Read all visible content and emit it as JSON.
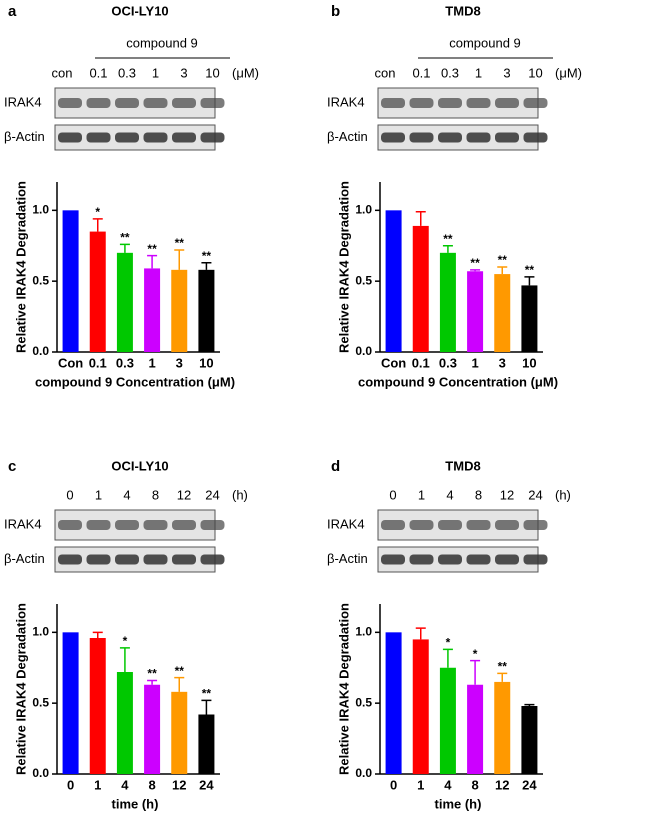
{
  "chart_data": [
    {
      "type": "bar",
      "panel": "a",
      "title": "OCI-LY10",
      "header": "compound 9",
      "lanes": [
        "con",
        "0.1",
        "0.3",
        "1",
        "3",
        "10"
      ],
      "unit": "(μM)",
      "blot_labels": [
        "IRAK4",
        "β-Actin"
      ],
      "categories": [
        "Con",
        "0.1",
        "0.3",
        "1",
        "3",
        "10"
      ],
      "values": [
        1.0,
        0.85,
        0.7,
        0.59,
        0.58,
        0.58
      ],
      "errors": [
        null,
        0.09,
        0.06,
        0.09,
        0.14,
        0.05
      ],
      "stars": [
        null,
        "*",
        "**",
        "**",
        "**",
        "**"
      ],
      "colors": [
        "#0000ff",
        "#ff0000",
        "#00c800",
        "#cc00ff",
        "#ff9900",
        "#000000"
      ],
      "ylabel": "Relative IRAK4 Degradation",
      "xlabel": "compound 9 Concentration (μM)",
      "ylim": [
        0,
        1.2
      ],
      "yticks": [
        {
          "value": 0,
          "label": "0.0"
        },
        0.5,
        {
          "value": 1,
          "label": "1.0"
        }
      ]
    },
    {
      "type": "bar",
      "panel": "b",
      "title": "TMD8",
      "header": "compound 9",
      "lanes": [
        "con",
        "0.1",
        "0.3",
        "1",
        "3",
        "10"
      ],
      "unit": "(μM)",
      "blot_labels": [
        "IRAK4",
        "β-Actin"
      ],
      "categories": [
        "Con",
        "0.1",
        "0.3",
        "1",
        "3",
        "10"
      ],
      "values": [
        1.0,
        0.89,
        0.7,
        0.57,
        0.55,
        0.47
      ],
      "errors": [
        null,
        0.1,
        0.05,
        0.01,
        0.05,
        0.06
      ],
      "stars": [
        null,
        null,
        "**",
        "**",
        "**",
        "**"
      ],
      "colors": [
        "#0000ff",
        "#ff0000",
        "#00c800",
        "#cc00ff",
        "#ff9900",
        "#000000"
      ],
      "ylabel": "Relative IRAK4 Degradation",
      "xlabel": "compound 9 Concentration (μM)",
      "ylim": [
        0,
        1.2
      ],
      "yticks": [
        {
          "value": 0,
          "label": "0.0"
        },
        0.5,
        {
          "value": 1,
          "label": "1.0"
        }
      ]
    },
    {
      "type": "bar",
      "panel": "c",
      "title": "OCI-LY10",
      "lanes": [
        "0",
        "1",
        "4",
        "8",
        "12",
        "24"
      ],
      "unit": "(h)",
      "blot_labels": [
        "IRAK4",
        "β-Actin"
      ],
      "categories": [
        "0",
        "1",
        "4",
        "8",
        "12",
        "24"
      ],
      "values": [
        1.0,
        0.96,
        0.72,
        0.63,
        0.58,
        0.42
      ],
      "errors": [
        null,
        0.04,
        0.17,
        0.03,
        0.1,
        0.1
      ],
      "stars": [
        null,
        null,
        "*",
        "**",
        "**",
        "**"
      ],
      "colors": [
        "#0000ff",
        "#ff0000",
        "#00c800",
        "#cc00ff",
        "#ff9900",
        "#000000"
      ],
      "ylabel": "Relative IRAK4 Degradation",
      "xlabel": "time (h)",
      "ylim": [
        0,
        1.2
      ],
      "yticks": [
        {
          "value": 0,
          "label": "0.0"
        },
        0.5,
        {
          "value": 1,
          "label": "1.0"
        }
      ]
    },
    {
      "type": "bar",
      "panel": "d",
      "title": "TMD8",
      "lanes": [
        "0",
        "1",
        "4",
        "8",
        "12",
        "24"
      ],
      "unit": "(h)",
      "blot_labels": [
        "IRAK4",
        "β-Actin"
      ],
      "categories": [
        "0",
        "1",
        "4",
        "8",
        "12",
        "24"
      ],
      "values": [
        1.0,
        0.95,
        0.75,
        0.63,
        0.65,
        0.48
      ],
      "errors": [
        null,
        0.08,
        0.13,
        0.17,
        0.06,
        0.01
      ],
      "stars": [
        null,
        null,
        "*",
        "*",
        "**",
        null
      ],
      "colors": [
        "#0000ff",
        "#ff0000",
        "#00c800",
        "#cc00ff",
        "#ff9900",
        "#000000"
      ],
      "ylabel": "Relative IRAK4 Degradation",
      "xlabel": "time (h)",
      "ylim": [
        0,
        1.2
      ],
      "yticks": [
        {
          "value": 0,
          "label": "0.0"
        },
        0.5,
        {
          "value": 1,
          "label": "1.0"
        }
      ]
    }
  ]
}
